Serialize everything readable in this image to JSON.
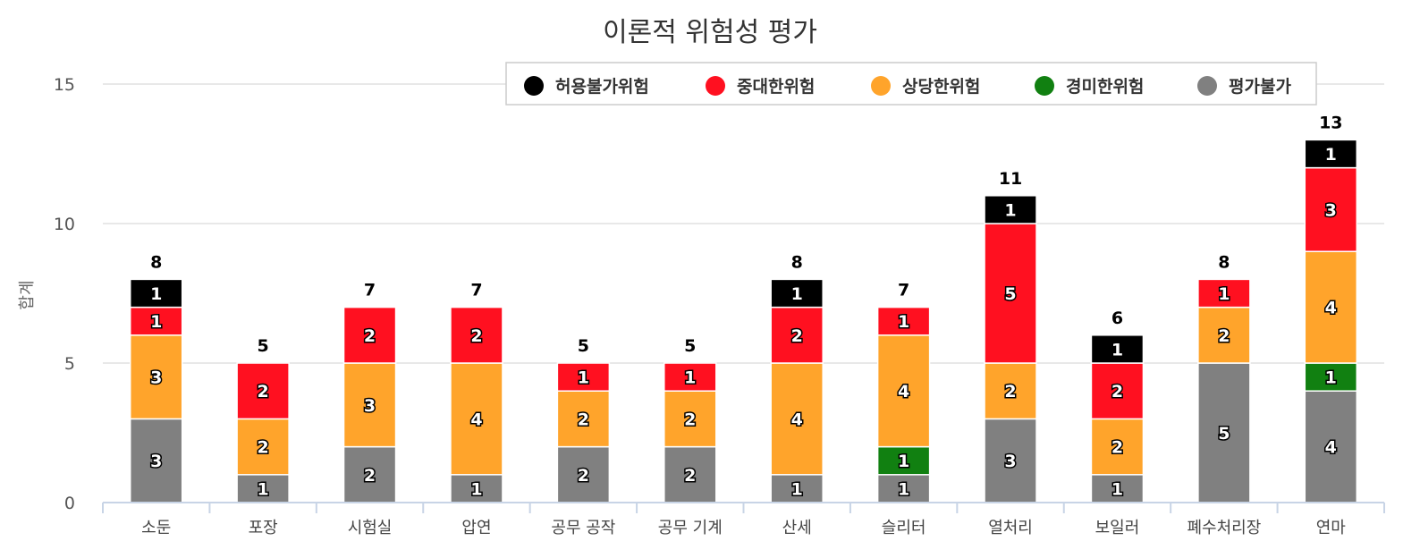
{
  "chart_data": {
    "type": "bar",
    "stacked": true,
    "title": "이론적 위험성 평가",
    "xlabel": "",
    "ylabel": "합계",
    "ylim": [
      0,
      15
    ],
    "yticks": [
      0,
      5,
      10,
      15
    ],
    "grid": true,
    "legend_position": "top-right",
    "categories": [
      "소둔",
      "포장",
      "시험실",
      "압연",
      "공무 공작",
      "공무 기계",
      "산세",
      "슬리터",
      "열처리",
      "보일러",
      "폐수처리장",
      "연마"
    ],
    "series": [
      {
        "name": "평가불가",
        "color": "#808080",
        "values": [
          3,
          1,
          2,
          1,
          2,
          2,
          1,
          1,
          3,
          1,
          5,
          4
        ]
      },
      {
        "name": "경미한위험",
        "color": "#118011",
        "values": [
          0,
          0,
          0,
          0,
          0,
          0,
          0,
          1,
          0,
          0,
          0,
          1
        ]
      },
      {
        "name": "상당한위험",
        "color": "#FFA42B",
        "values": [
          3,
          2,
          3,
          4,
          2,
          2,
          4,
          4,
          2,
          2,
          2,
          4
        ]
      },
      {
        "name": "중대한위험",
        "color": "#FF1020",
        "values": [
          1,
          2,
          2,
          2,
          1,
          1,
          2,
          1,
          5,
          2,
          1,
          3
        ]
      },
      {
        "name": "허용불가위험",
        "color": "#000000",
        "values": [
          1,
          0,
          0,
          0,
          0,
          0,
          1,
          0,
          1,
          1,
          0,
          1
        ]
      }
    ],
    "legend_order": [
      "허용불가위험",
      "중대한위험",
      "상당한위험",
      "경미한위험",
      "평가불가"
    ],
    "totals": [
      8,
      5,
      7,
      7,
      5,
      5,
      8,
      7,
      11,
      6,
      8,
      13
    ]
  }
}
